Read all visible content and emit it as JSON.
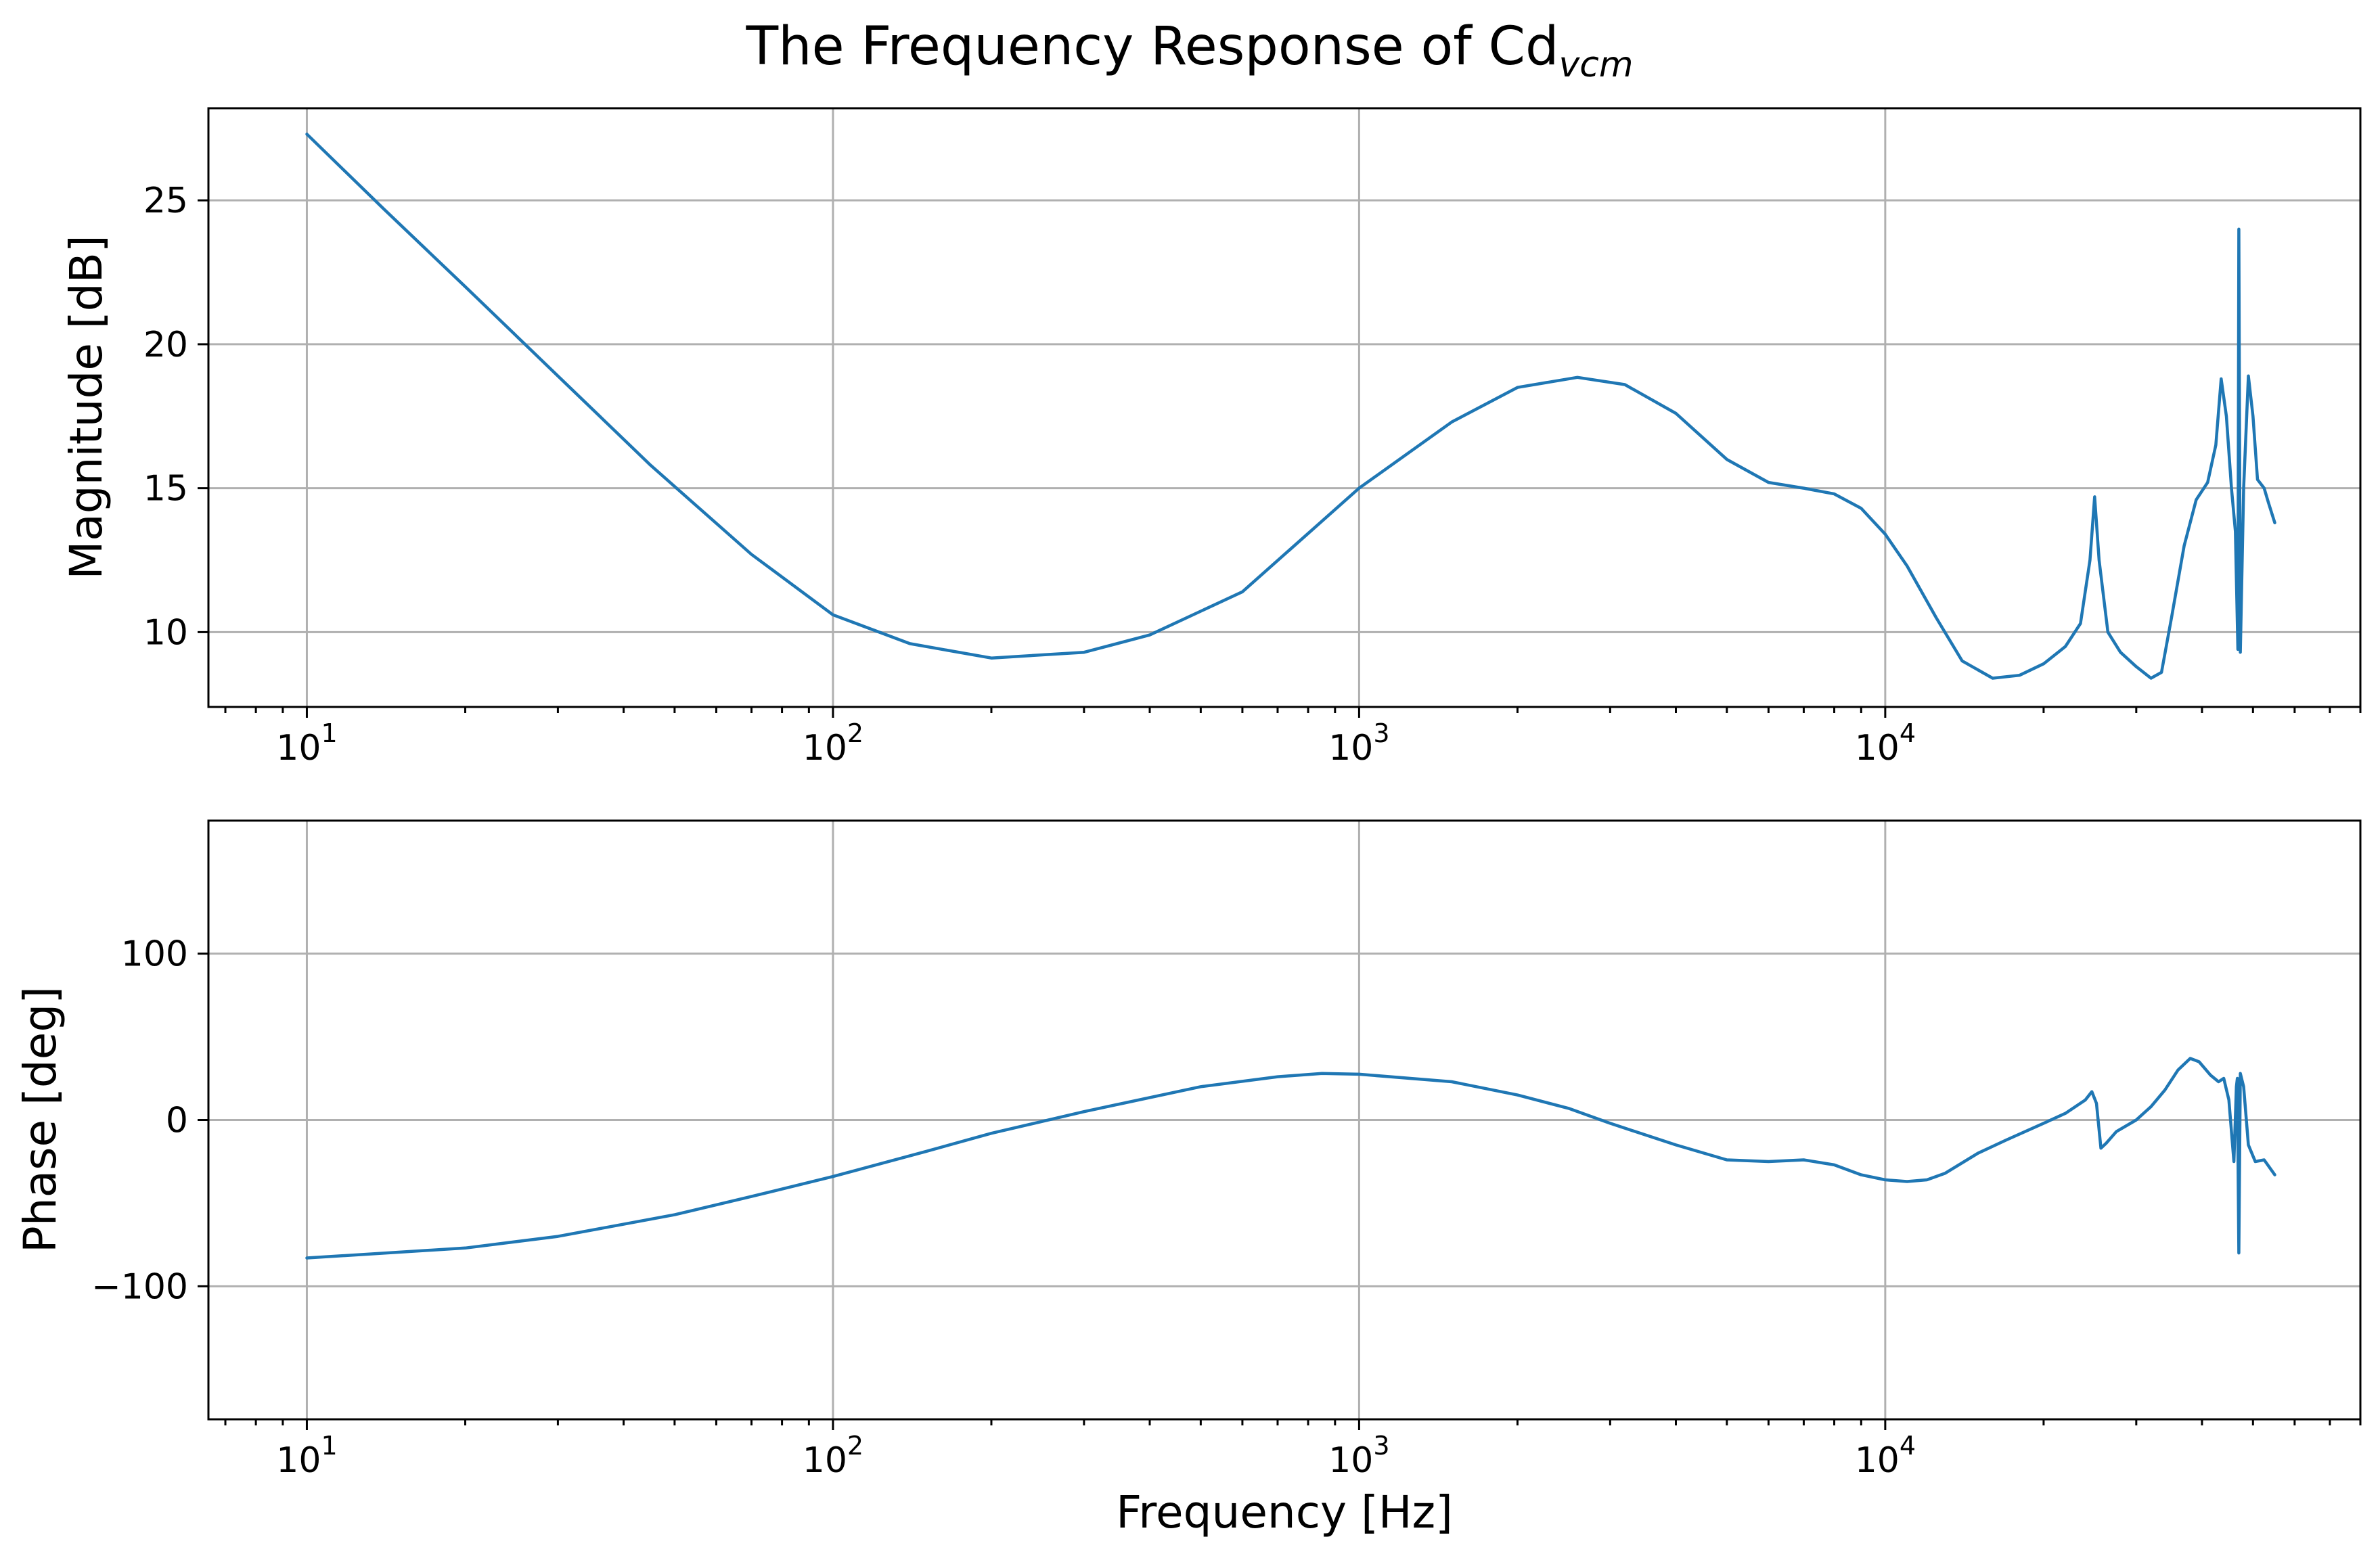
{
  "figure": {
    "title": "The Frequency Response of Cd",
    "title_subscript": "vcm"
  },
  "chart_data": [
    {
      "type": "line",
      "ylabel": "Magnitude [dB]",
      "xlabel": "",
      "xscale": "log",
      "xlim": [
        6.5,
        80000
      ],
      "ylim": [
        7.4,
        28.2
      ],
      "grid": true,
      "color": "#1f77b4",
      "x_ticks": [
        {
          "value": 10,
          "base": "10",
          "exp": "1"
        },
        {
          "value": 100,
          "base": "10",
          "exp": "2"
        },
        {
          "value": 1000,
          "base": "10",
          "exp": "3"
        },
        {
          "value": 10000,
          "base": "10",
          "exp": "4"
        }
      ],
      "y_ticks": [
        {
          "value": 10,
          "label": "10"
        },
        {
          "value": 15,
          "label": "15"
        },
        {
          "value": 20,
          "label": "20"
        },
        {
          "value": 25,
          "label": "25"
        }
      ],
      "series": [
        {
          "points": [
            [
              10,
              27.3
            ],
            [
              14,
              24.7
            ],
            [
              20,
              22.0
            ],
            [
              30,
              18.9
            ],
            [
              45,
              15.8
            ],
            [
              70,
              12.7
            ],
            [
              100,
              10.6
            ],
            [
              140,
              9.6
            ],
            [
              200,
              9.1
            ],
            [
              300,
              9.3
            ],
            [
              400,
              9.9
            ],
            [
              600,
              11.4
            ],
            [
              1000,
              15.0
            ],
            [
              1500,
              17.3
            ],
            [
              2000,
              18.5
            ],
            [
              2600,
              18.85
            ],
            [
              3200,
              18.6
            ],
            [
              4000,
              17.6
            ],
            [
              5000,
              16.0
            ],
            [
              6000,
              15.2
            ],
            [
              7000,
              15.0
            ],
            [
              8000,
              14.8
            ],
            [
              9000,
              14.3
            ],
            [
              10000,
              13.4
            ],
            [
              11000,
              12.3
            ],
            [
              12500,
              10.5
            ],
            [
              14000,
              9.0
            ],
            [
              16000,
              8.4
            ],
            [
              18000,
              8.5
            ],
            [
              20000,
              8.9
            ],
            [
              22000,
              9.5
            ],
            [
              23500,
              10.3
            ],
            [
              24500,
              12.5
            ],
            [
              25000,
              14.7
            ],
            [
              25500,
              12.5
            ],
            [
              26500,
              10.0
            ],
            [
              28000,
              9.3
            ],
            [
              30000,
              8.8
            ],
            [
              32000,
              8.4
            ],
            [
              33500,
              8.6
            ],
            [
              35000,
              10.5
            ],
            [
              37000,
              13.0
            ],
            [
              39000,
              14.6
            ],
            [
              41000,
              15.2
            ],
            [
              42500,
              16.5
            ],
            [
              43500,
              18.8
            ],
            [
              44500,
              17.5
            ],
            [
              45500,
              15.0
            ],
            [
              46300,
              13.5
            ],
            [
              46800,
              9.4
            ],
            [
              47000,
              24.0
            ],
            [
              47300,
              9.3
            ],
            [
              48000,
              15.0
            ],
            [
              49000,
              18.9
            ],
            [
              50000,
              17.5
            ],
            [
              51000,
              15.3
            ],
            [
              52500,
              15.0
            ],
            [
              53500,
              14.5
            ],
            [
              55000,
              13.8
            ]
          ]
        }
      ]
    },
    {
      "type": "line",
      "ylabel": "Phase [deg]",
      "xlabel": "Frequency [Hz]",
      "xscale": "log",
      "xlim": [
        6.5,
        80000
      ],
      "ylim": [
        -180,
        180
      ],
      "grid": true,
      "color": "#1f77b4",
      "x_ticks": [
        {
          "value": 10,
          "base": "10",
          "exp": "1"
        },
        {
          "value": 100,
          "base": "10",
          "exp": "2"
        },
        {
          "value": 1000,
          "base": "10",
          "exp": "3"
        },
        {
          "value": 10000,
          "base": "10",
          "exp": "4"
        }
      ],
      "y_ticks": [
        {
          "value": -100,
          "label": "−100"
        },
        {
          "value": 0,
          "label": "0"
        },
        {
          "value": 100,
          "label": "100"
        }
      ],
      "series": [
        {
          "points": [
            [
              10,
              -83
            ],
            [
              20,
              -77
            ],
            [
              30,
              -70
            ],
            [
              50,
              -57
            ],
            [
              70,
              -46
            ],
            [
              100,
              -34
            ],
            [
              150,
              -19
            ],
            [
              200,
              -8
            ],
            [
              300,
              5
            ],
            [
              500,
              20
            ],
            [
              700,
              26
            ],
            [
              850,
              28
            ],
            [
              1000,
              27.5
            ],
            [
              1500,
              23
            ],
            [
              2000,
              15
            ],
            [
              2500,
              7
            ],
            [
              3000,
              -2
            ],
            [
              4000,
              -15
            ],
            [
              5000,
              -24
            ],
            [
              6000,
              -25
            ],
            [
              7000,
              -24
            ],
            [
              8000,
              -27
            ],
            [
              9000,
              -33
            ],
            [
              10000,
              -36
            ],
            [
              11000,
              -37
            ],
            [
              12000,
              -36
            ],
            [
              13000,
              -32
            ],
            [
              15000,
              -20
            ],
            [
              17000,
              -12
            ],
            [
              20000,
              -2
            ],
            [
              22000,
              4
            ],
            [
              24000,
              12
            ],
            [
              24700,
              17
            ],
            [
              25200,
              10
            ],
            [
              25700,
              -17
            ],
            [
              26300,
              -14
            ],
            [
              27500,
              -7
            ],
            [
              30000,
              0
            ],
            [
              32000,
              8
            ],
            [
              34000,
              18
            ],
            [
              36000,
              30
            ],
            [
              38000,
              37
            ],
            [
              39500,
              35
            ],
            [
              41500,
              27
            ],
            [
              43000,
              23
            ],
            [
              44000,
              25
            ],
            [
              45000,
              12
            ],
            [
              46000,
              -25
            ],
            [
              46500,
              20
            ],
            [
              46700,
              25
            ],
            [
              47000,
              -80
            ],
            [
              47300,
              28
            ],
            [
              48000,
              20
            ],
            [
              49000,
              -15
            ],
            [
              50500,
              -25
            ],
            [
              52500,
              -24
            ],
            [
              55000,
              -33
            ]
          ]
        }
      ]
    }
  ]
}
